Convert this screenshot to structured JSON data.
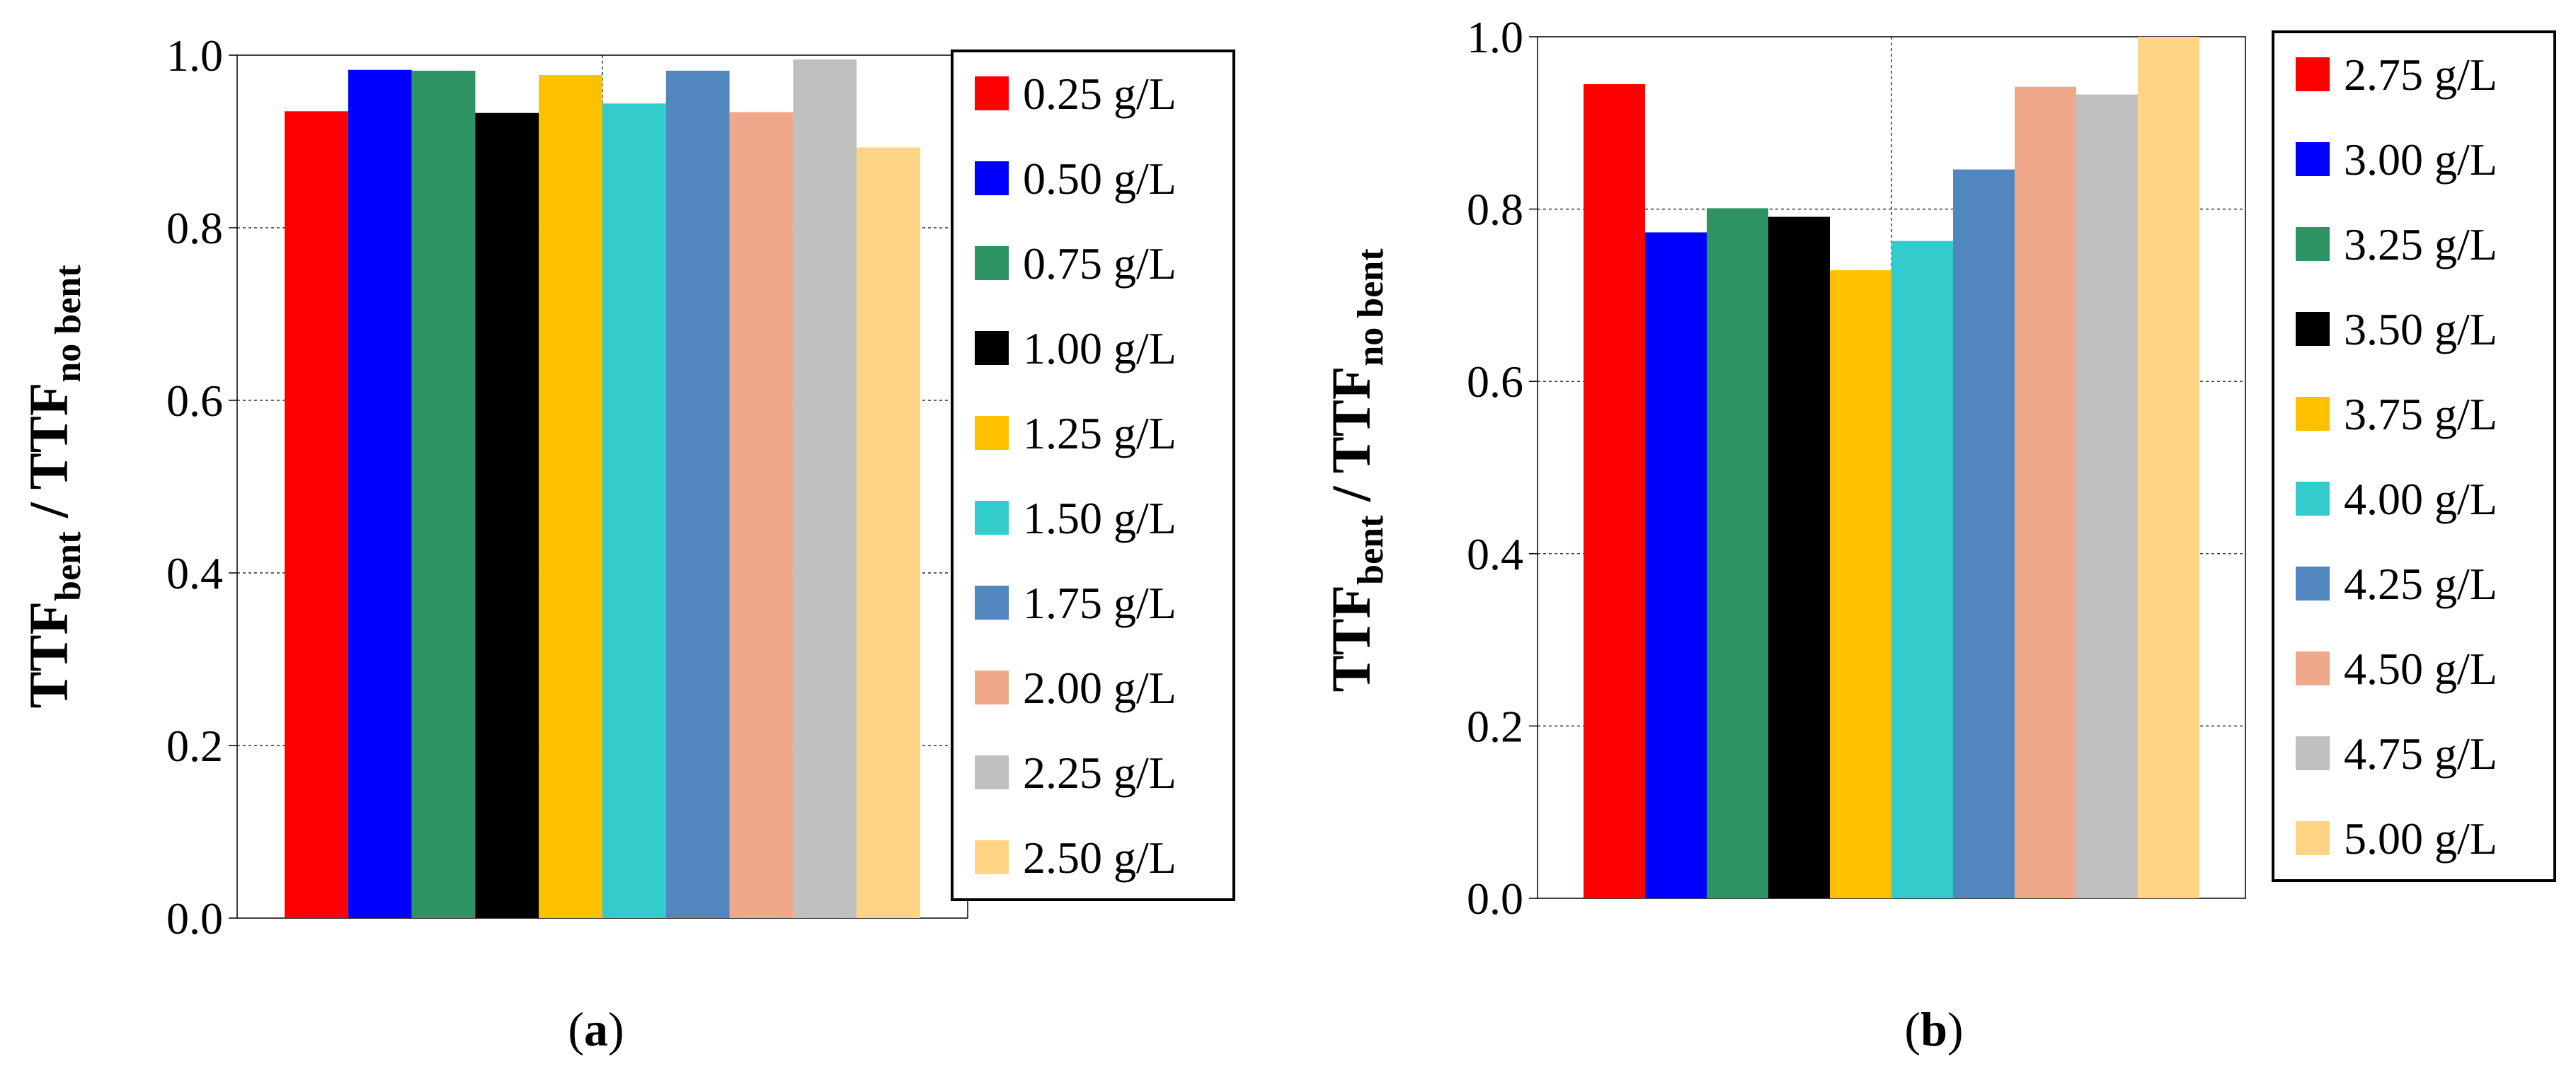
{
  "chart_data": [
    {
      "type": "bar",
      "caption": "a",
      "title": "",
      "xlabel": "",
      "ylabel": {
        "main": "TTF",
        "sub1": "bent",
        "sep": " / ",
        "main2": "TTF",
        "sub2": "no bent"
      },
      "ylim": [
        0,
        1.0
      ],
      "yticks": [
        "0.0",
        "0.2",
        "0.4",
        "0.6",
        "0.8",
        "1.0"
      ],
      "grid": true,
      "legend_position": "right",
      "series": [
        {
          "name": "0.25 g/L",
          "value": 0.935,
          "color": "#ff0000"
        },
        {
          "name": "0.50 g/L",
          "value": 0.983,
          "color": "#0000ff"
        },
        {
          "name": "0.75 g/L",
          "value": 0.982,
          "color": "#2e9464"
        },
        {
          "name": "1.00 g/L",
          "value": 0.933,
          "color": "#000000"
        },
        {
          "name": "1.25 g/L",
          "value": 0.977,
          "color": "#ffc000"
        },
        {
          "name": "1.50 g/L",
          "value": 0.944,
          "color": "#33cccc"
        },
        {
          "name": "1.75 g/L",
          "value": 0.982,
          "color": "#4f87be"
        },
        {
          "name": "2.00 g/L",
          "value": 0.934,
          "color": "#f0a88a"
        },
        {
          "name": "2.25 g/L",
          "value": 0.995,
          "color": "#c0c0c0"
        },
        {
          "name": "2.50 g/L",
          "value": 0.893,
          "color": "#ffd485"
        }
      ]
    },
    {
      "type": "bar",
      "caption": "b",
      "title": "",
      "xlabel": "",
      "ylabel": {
        "main": "TTF",
        "sub1": "bent",
        "sep": " / ",
        "main2": "TTF",
        "sub2": "no bent"
      },
      "ylim": [
        0,
        1.0
      ],
      "yticks": [
        "0.0",
        "0.2",
        "0.4",
        "0.6",
        "0.8",
        "1.0"
      ],
      "grid": true,
      "legend_position": "right",
      "series": [
        {
          "name": "2.75 g/L",
          "value": 0.945,
          "color": "#ff0000"
        },
        {
          "name": "3.00 g/L",
          "value": 0.773,
          "color": "#0000ff"
        },
        {
          "name": "3.25 g/L",
          "value": 0.801,
          "color": "#2e9464"
        },
        {
          "name": "3.50 g/L",
          "value": 0.791,
          "color": "#000000"
        },
        {
          "name": "3.75 g/L",
          "value": 0.729,
          "color": "#ffc000"
        },
        {
          "name": "4.00 g/L",
          "value": 0.763,
          "color": "#33cccc"
        },
        {
          "name": "4.25 g/L",
          "value": 0.846,
          "color": "#4f87be"
        },
        {
          "name": "4.50 g/L",
          "value": 0.942,
          "color": "#f0a88a"
        },
        {
          "name": "4.75 g/L",
          "value": 0.933,
          "color": "#c0c0c0"
        },
        {
          "name": "5.00 g/L",
          "value": 1.0,
          "color": "#ffd485"
        }
      ]
    }
  ]
}
